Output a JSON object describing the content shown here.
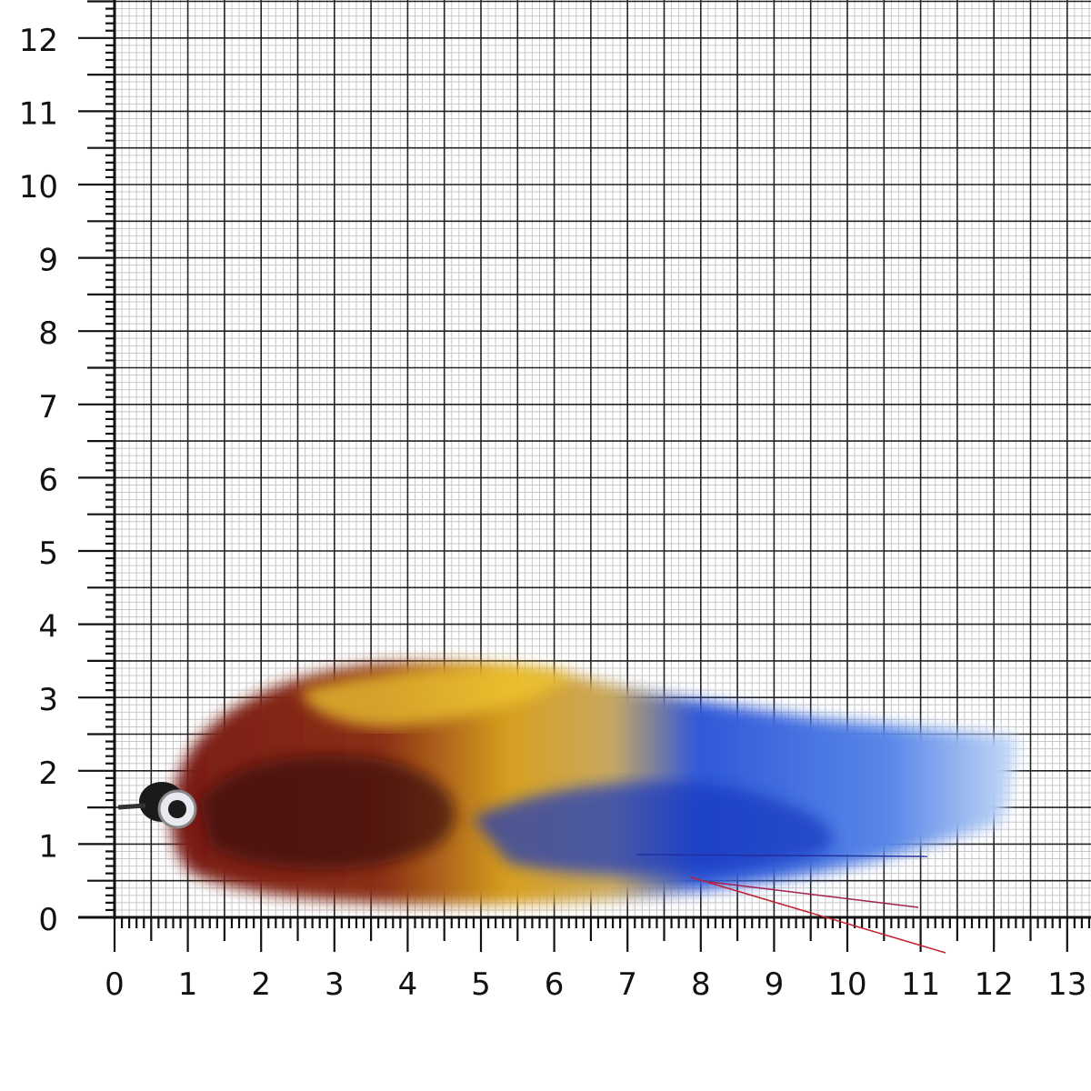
{
  "scale": {
    "x_ticks": [
      "0",
      "1",
      "2",
      "3",
      "4",
      "5",
      "6",
      "7",
      "8",
      "9",
      "10",
      "11",
      "12",
      "13"
    ],
    "y_ticks": [
      "0",
      "1",
      "2",
      "3",
      "4",
      "5",
      "6",
      "7",
      "8",
      "9",
      "10",
      "11",
      "12"
    ],
    "minor_division": 0.1,
    "major_grid_every": 0.5
  },
  "subject": {
    "name": "streamer-fly",
    "colors": {
      "head": "#1a1a1a",
      "dark_red": "#6b1a12",
      "rust": "#a8401a",
      "yellow": "#e8b820",
      "blue": "#2050d8",
      "light_blue": "#a8c8f0"
    }
  },
  "colors": {
    "grid_major": "#222222",
    "grid_minor": "#c8c8c8",
    "background": "#ffffff"
  }
}
